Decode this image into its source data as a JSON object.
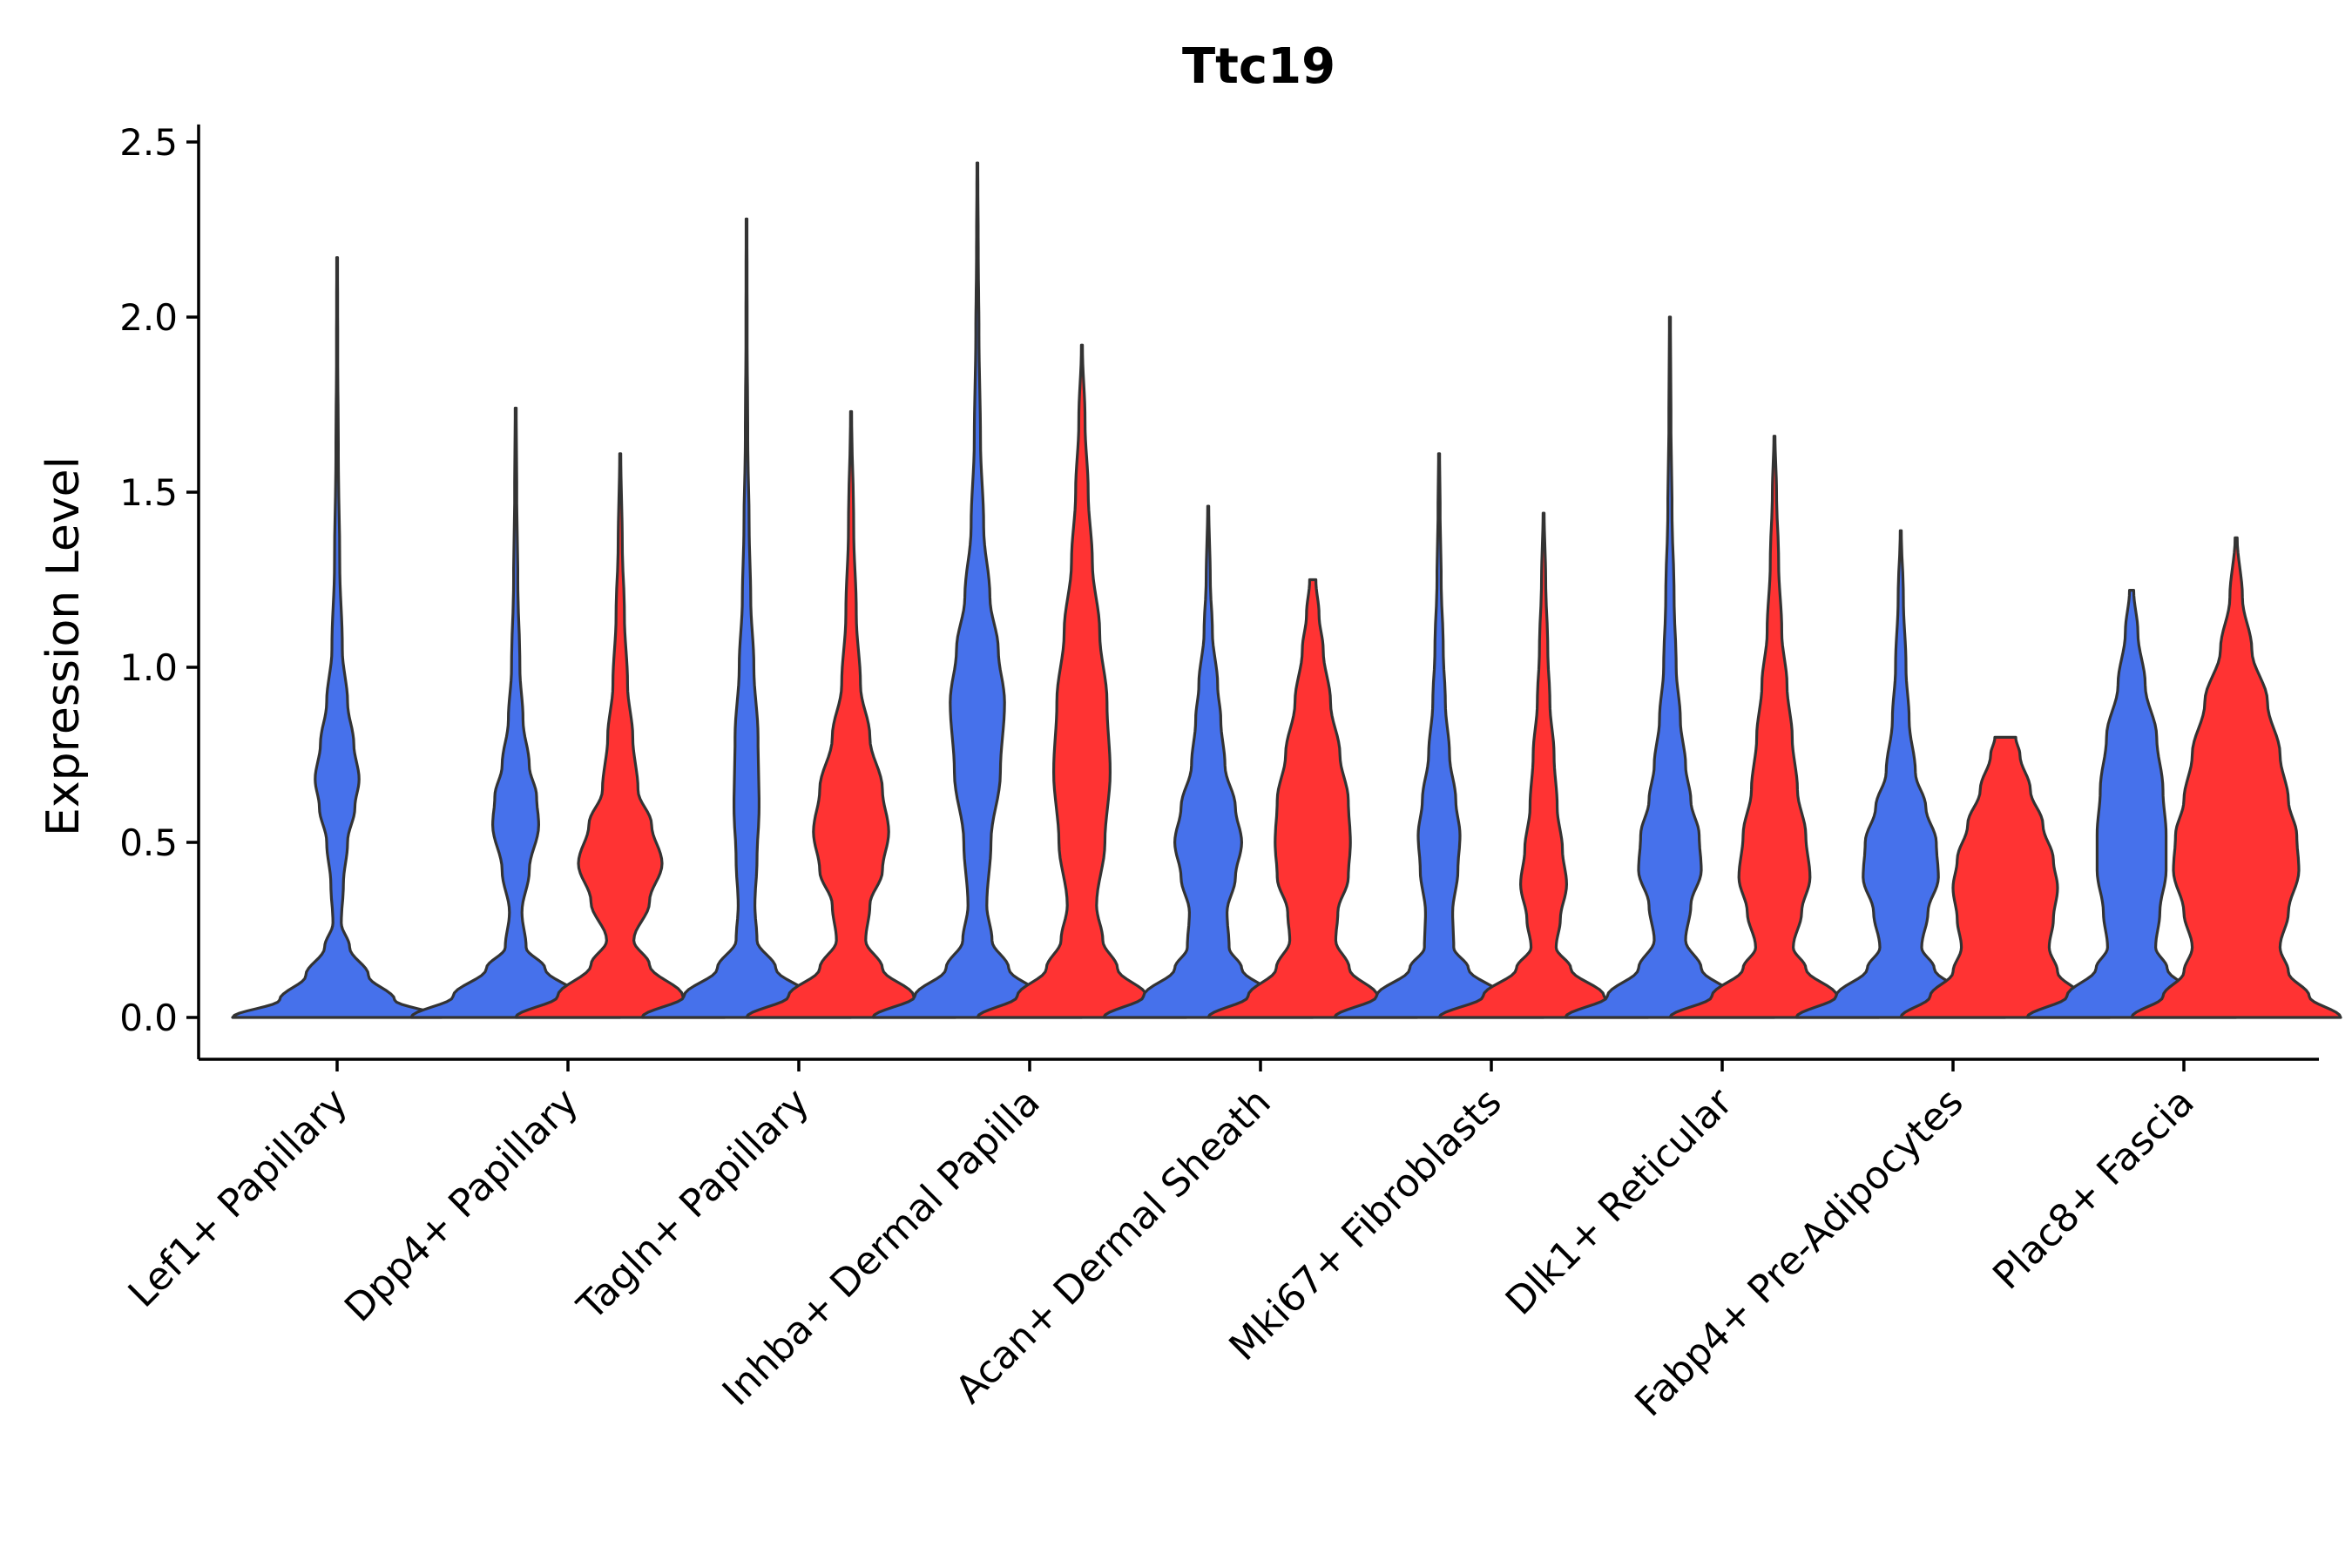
{
  "chart_data": {
    "type": "violin",
    "title": "Ttc19",
    "xlabel": "",
    "ylabel": "Expression Level",
    "ylim": [
      -0.12,
      2.55
    ],
    "yticks": [
      0.0,
      0.5,
      1.0,
      1.5,
      2.0,
      2.5
    ],
    "ytick_labels": [
      "0.0",
      "0.5",
      "1.0",
      "1.5",
      "2.0",
      "2.5"
    ],
    "grid": false,
    "legend": "none",
    "series_colors": {
      "blue": "#4671EB",
      "red": "#FF3333"
    },
    "categories": [
      "Lef1+ Papillary",
      "Dpp4+ Papillary",
      "Tagln+ Papillary",
      "Inhba+ Dermal Papilla",
      "Acan+ Dermal Sheath",
      "Mki67+ Fibroblasts",
      "Dlk1+ Reticular",
      "Fabp4+ Pre-Adipocytes",
      "Plac8+ Fascia"
    ],
    "violins": [
      {
        "category": "Lef1+ Papillary",
        "group": "blue",
        "max": 2.17,
        "profile": [
          [
            0,
            1.0
          ],
          [
            0.05,
            0.55
          ],
          [
            0.12,
            0.3
          ],
          [
            0.2,
            0.12
          ],
          [
            0.27,
            0.04
          ],
          [
            0.38,
            0.06
          ],
          [
            0.5,
            0.1
          ],
          [
            0.6,
            0.17
          ],
          [
            0.68,
            0.21
          ],
          [
            0.78,
            0.16
          ],
          [
            0.9,
            0.1
          ],
          [
            1.05,
            0.05
          ],
          [
            1.3,
            0.025
          ],
          [
            1.6,
            0.012
          ],
          [
            1.9,
            0.006
          ],
          [
            2.17,
            0.004
          ]
        ]
      },
      {
        "category": "Dpp4+ Papillary",
        "group": "blue",
        "max": 1.74,
        "profile": [
          [
            0,
            1.0
          ],
          [
            0.06,
            0.6
          ],
          [
            0.14,
            0.28
          ],
          [
            0.2,
            0.1
          ],
          [
            0.3,
            0.06
          ],
          [
            0.42,
            0.13
          ],
          [
            0.55,
            0.22
          ],
          [
            0.63,
            0.2
          ],
          [
            0.72,
            0.13
          ],
          [
            0.85,
            0.07
          ],
          [
            1.0,
            0.04
          ],
          [
            1.25,
            0.02
          ],
          [
            1.5,
            0.01
          ],
          [
            1.74,
            0.005
          ]
        ]
      },
      {
        "category": "Dpp4+ Papillary",
        "group": "red",
        "max": 1.61,
        "profile": [
          [
            0,
            1.0
          ],
          [
            0.06,
            0.6
          ],
          [
            0.15,
            0.28
          ],
          [
            0.22,
            0.13
          ],
          [
            0.33,
            0.28
          ],
          [
            0.44,
            0.4
          ],
          [
            0.55,
            0.3
          ],
          [
            0.65,
            0.17
          ],
          [
            0.8,
            0.12
          ],
          [
            0.95,
            0.07
          ],
          [
            1.15,
            0.04
          ],
          [
            1.35,
            0.02
          ],
          [
            1.61,
            0.005
          ]
        ]
      },
      {
        "category": "Tagln+ Papillary",
        "group": "blue",
        "max": 2.28,
        "profile": [
          [
            0,
            1.0
          ],
          [
            0.06,
            0.6
          ],
          [
            0.14,
            0.28
          ],
          [
            0.22,
            0.1
          ],
          [
            0.32,
            0.08
          ],
          [
            0.45,
            0.1
          ],
          [
            0.6,
            0.12
          ],
          [
            0.8,
            0.11
          ],
          [
            1.0,
            0.07
          ],
          [
            1.2,
            0.04
          ],
          [
            1.4,
            0.025
          ],
          [
            1.65,
            0.012
          ],
          [
            1.95,
            0.006
          ],
          [
            2.28,
            0.004
          ]
        ]
      },
      {
        "category": "Tagln+ Papillary",
        "group": "red",
        "max": 1.73,
        "profile": [
          [
            0,
            1.0
          ],
          [
            0.06,
            0.6
          ],
          [
            0.14,
            0.3
          ],
          [
            0.22,
            0.14
          ],
          [
            0.32,
            0.18
          ],
          [
            0.42,
            0.3
          ],
          [
            0.53,
            0.36
          ],
          [
            0.65,
            0.3
          ],
          [
            0.8,
            0.18
          ],
          [
            0.95,
            0.09
          ],
          [
            1.15,
            0.05
          ],
          [
            1.4,
            0.025
          ],
          [
            1.73,
            0.005
          ]
        ]
      },
      {
        "category": "Inhba+ Dermal Papilla",
        "group": "blue",
        "max": 2.44,
        "profile": [
          [
            0,
            1.0
          ],
          [
            0.06,
            0.6
          ],
          [
            0.14,
            0.3
          ],
          [
            0.22,
            0.14
          ],
          [
            0.32,
            0.09
          ],
          [
            0.5,
            0.13
          ],
          [
            0.7,
            0.22
          ],
          [
            0.9,
            0.26
          ],
          [
            1.05,
            0.2
          ],
          [
            1.2,
            0.12
          ],
          [
            1.4,
            0.06
          ],
          [
            1.65,
            0.03
          ],
          [
            1.95,
            0.015
          ],
          [
            2.2,
            0.008
          ],
          [
            2.44,
            0.004
          ]
        ]
      },
      {
        "category": "Inhba+ Dermal Papilla",
        "group": "red",
        "max": 1.92,
        "profile": [
          [
            0,
            1.0
          ],
          [
            0.06,
            0.62
          ],
          [
            0.14,
            0.34
          ],
          [
            0.22,
            0.2
          ],
          [
            0.32,
            0.14
          ],
          [
            0.5,
            0.22
          ],
          [
            0.7,
            0.27
          ],
          [
            0.9,
            0.24
          ],
          [
            1.1,
            0.17
          ],
          [
            1.3,
            0.1
          ],
          [
            1.5,
            0.06
          ],
          [
            1.7,
            0.03
          ],
          [
            1.92,
            0.005
          ]
        ]
      },
      {
        "category": "Acan+ Dermal Sheath",
        "group": "blue",
        "max": 1.46,
        "profile": [
          [
            0,
            1.0
          ],
          [
            0.06,
            0.62
          ],
          [
            0.14,
            0.32
          ],
          [
            0.2,
            0.2
          ],
          [
            0.3,
            0.18
          ],
          [
            0.4,
            0.26
          ],
          [
            0.5,
            0.32
          ],
          [
            0.6,
            0.26
          ],
          [
            0.72,
            0.16
          ],
          [
            0.85,
            0.12
          ],
          [
            0.95,
            0.09
          ],
          [
            1.1,
            0.04
          ],
          [
            1.25,
            0.02
          ],
          [
            1.46,
            0.005
          ]
        ]
      },
      {
        "category": "Acan+ Dermal Sheath",
        "group": "red",
        "max": 1.25,
        "profile": [
          [
            0,
            1.0
          ],
          [
            0.06,
            0.62
          ],
          [
            0.14,
            0.35
          ],
          [
            0.22,
            0.22
          ],
          [
            0.3,
            0.24
          ],
          [
            0.4,
            0.34
          ],
          [
            0.5,
            0.36
          ],
          [
            0.62,
            0.34
          ],
          [
            0.75,
            0.26
          ],
          [
            0.9,
            0.17
          ],
          [
            1.05,
            0.1
          ],
          [
            1.15,
            0.06
          ],
          [
            1.25,
            0.03
          ]
        ]
      },
      {
        "category": "Mki67+ Fibroblasts",
        "group": "blue",
        "max": 1.61,
        "profile": [
          [
            0,
            1.0
          ],
          [
            0.06,
            0.6
          ],
          [
            0.14,
            0.28
          ],
          [
            0.2,
            0.14
          ],
          [
            0.3,
            0.13
          ],
          [
            0.42,
            0.18
          ],
          [
            0.52,
            0.2
          ],
          [
            0.62,
            0.16
          ],
          [
            0.75,
            0.1
          ],
          [
            0.9,
            0.06
          ],
          [
            1.05,
            0.04
          ],
          [
            1.25,
            0.02
          ],
          [
            1.45,
            0.01
          ],
          [
            1.61,
            0.005
          ]
        ]
      },
      {
        "category": "Mki67+ Fibroblasts",
        "group": "red",
        "max": 1.44,
        "profile": [
          [
            0,
            1.0
          ],
          [
            0.06,
            0.58
          ],
          [
            0.14,
            0.26
          ],
          [
            0.2,
            0.12
          ],
          [
            0.28,
            0.16
          ],
          [
            0.38,
            0.22
          ],
          [
            0.48,
            0.18
          ],
          [
            0.6,
            0.13
          ],
          [
            0.75,
            0.1
          ],
          [
            0.9,
            0.06
          ],
          [
            1.05,
            0.04
          ],
          [
            1.25,
            0.02
          ],
          [
            1.44,
            0.005
          ]
        ]
      },
      {
        "category": "Dlk1+ Reticular",
        "group": "blue",
        "max": 2.0,
        "profile": [
          [
            0,
            1.0
          ],
          [
            0.06,
            0.6
          ],
          [
            0.14,
            0.3
          ],
          [
            0.22,
            0.15
          ],
          [
            0.32,
            0.2
          ],
          [
            0.42,
            0.3
          ],
          [
            0.52,
            0.28
          ],
          [
            0.62,
            0.2
          ],
          [
            0.72,
            0.15
          ],
          [
            0.85,
            0.1
          ],
          [
            1.0,
            0.06
          ],
          [
            1.2,
            0.04
          ],
          [
            1.45,
            0.02
          ],
          [
            1.7,
            0.01
          ],
          [
            2.0,
            0.005
          ]
        ]
      },
      {
        "category": "Dlk1+ Reticular",
        "group": "red",
        "max": 1.66,
        "profile": [
          [
            0,
            1.0
          ],
          [
            0.06,
            0.6
          ],
          [
            0.14,
            0.3
          ],
          [
            0.2,
            0.18
          ],
          [
            0.3,
            0.26
          ],
          [
            0.4,
            0.34
          ],
          [
            0.52,
            0.3
          ],
          [
            0.65,
            0.22
          ],
          [
            0.8,
            0.17
          ],
          [
            0.95,
            0.12
          ],
          [
            1.1,
            0.07
          ],
          [
            1.3,
            0.04
          ],
          [
            1.5,
            0.02
          ],
          [
            1.66,
            0.005
          ]
        ]
      },
      {
        "category": "Fabp4+ Pre-Adipocytes",
        "group": "blue",
        "max": 1.39,
        "profile": [
          [
            0,
            1.0
          ],
          [
            0.06,
            0.62
          ],
          [
            0.14,
            0.32
          ],
          [
            0.2,
            0.2
          ],
          [
            0.3,
            0.26
          ],
          [
            0.4,
            0.36
          ],
          [
            0.5,
            0.34
          ],
          [
            0.6,
            0.24
          ],
          [
            0.7,
            0.14
          ],
          [
            0.85,
            0.08
          ],
          [
            1.0,
            0.05
          ],
          [
            1.2,
            0.025
          ],
          [
            1.39,
            0.005
          ]
        ]
      },
      {
        "category": "Fabp4+ Pre-Adipocytes",
        "group": "red",
        "max": 0.8,
        "profile": [
          [
            0,
            1.0
          ],
          [
            0.06,
            0.72
          ],
          [
            0.13,
            0.5
          ],
          [
            0.2,
            0.42
          ],
          [
            0.28,
            0.46
          ],
          [
            0.37,
            0.5
          ],
          [
            0.45,
            0.46
          ],
          [
            0.55,
            0.36
          ],
          [
            0.65,
            0.24
          ],
          [
            0.75,
            0.14
          ],
          [
            0.8,
            0.1
          ]
        ]
      },
      {
        "category": "Plac8+ Fascia",
        "group": "blue",
        "max": 1.22,
        "profile": [
          [
            0,
            1.0
          ],
          [
            0.06,
            0.62
          ],
          [
            0.14,
            0.34
          ],
          [
            0.2,
            0.23
          ],
          [
            0.3,
            0.27
          ],
          [
            0.42,
            0.33
          ],
          [
            0.52,
            0.33
          ],
          [
            0.65,
            0.3
          ],
          [
            0.8,
            0.24
          ],
          [
            0.95,
            0.13
          ],
          [
            1.1,
            0.06
          ],
          [
            1.22,
            0.02
          ]
        ]
      },
      {
        "category": "Plac8+ Fascia",
        "group": "red",
        "max": 1.37,
        "profile": [
          [
            0,
            1.0
          ],
          [
            0.06,
            0.7
          ],
          [
            0.13,
            0.5
          ],
          [
            0.2,
            0.42
          ],
          [
            0.3,
            0.5
          ],
          [
            0.42,
            0.6
          ],
          [
            0.52,
            0.58
          ],
          [
            0.62,
            0.5
          ],
          [
            0.75,
            0.42
          ],
          [
            0.9,
            0.3
          ],
          [
            1.05,
            0.15
          ],
          [
            1.2,
            0.06
          ],
          [
            1.37,
            0.01
          ]
        ]
      }
    ]
  }
}
